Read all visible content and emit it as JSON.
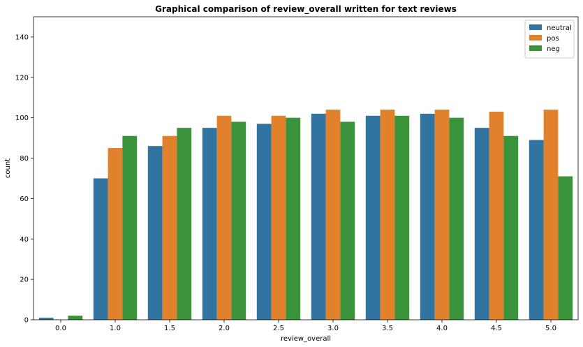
{
  "chart_data": {
    "type": "bar",
    "title": "Graphical comparison of review_overall written for text reviews",
    "xlabel": "review_overall",
    "ylabel": "count",
    "categories": [
      "0.0",
      "1.0",
      "1.5",
      "2.0",
      "2.5",
      "3.0",
      "3.5",
      "4.0",
      "4.5",
      "5.0"
    ],
    "series": [
      {
        "name": "neutral",
        "color": "#3274a1",
        "values": [
          1,
          70,
          86,
          95,
          97,
          102,
          101,
          102,
          95,
          89
        ]
      },
      {
        "name": "pos",
        "color": "#e1812c",
        "values": [
          0,
          85,
          91,
          101,
          101,
          104,
          104,
          104,
          103,
          104
        ]
      },
      {
        "name": "neg",
        "color": "#3a923a",
        "values": [
          2,
          91,
          95,
          98,
          100,
          98,
          101,
          100,
          91,
          71
        ]
      }
    ],
    "ylim": [
      0,
      150
    ],
    "yticks": [
      0,
      20,
      40,
      60,
      80,
      100,
      120,
      140
    ],
    "grid": false,
    "legend": "top-right"
  }
}
